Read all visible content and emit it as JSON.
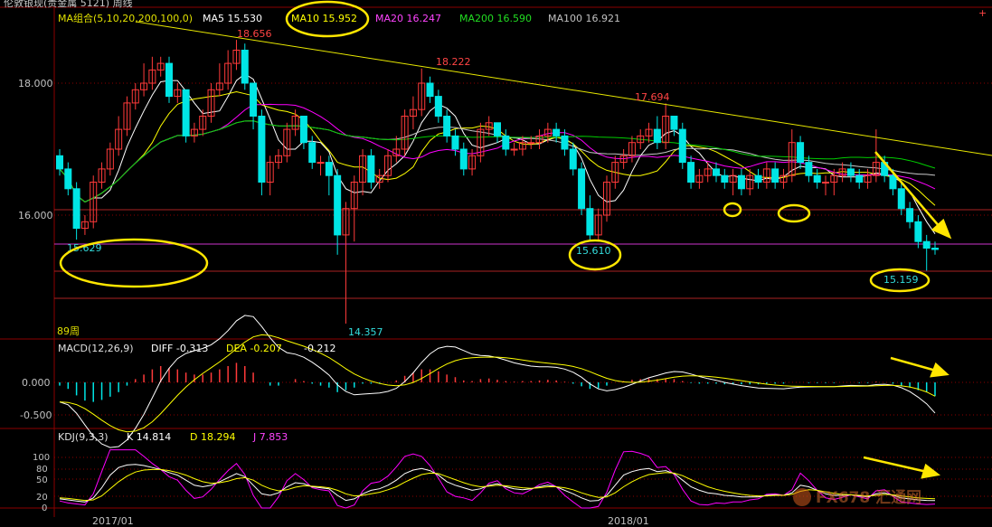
{
  "header": {
    "title": "伦敦银现(贵金属 5121)  周线",
    "ma_label": "MA组合(5,10,20,200,100,0)",
    "ma5": "MA5 15.530",
    "ma10": "MA10 15.952",
    "ma20": "MA20 16.247",
    "ma200": "MA200 16.590",
    "ma100": "MA100 16.921"
  },
  "colors": {
    "ma5": "#ffffff",
    "ma10": "#ffff00",
    "ma20": "#ff00ff",
    "ma200": "#00cc00",
    "ma100": "#c8c8c8",
    "up": "#ff3a3a",
    "down": "#00e5e5",
    "grid": "#8b0000",
    "highlight": "#ffe600"
  },
  "main_panel": {
    "y_ticks": [
      "18.000",
      "16.000"
    ],
    "annotations": {
      "h1": "18.656",
      "h2": "18.222",
      "h3": "17.694",
      "l1": "15.629",
      "l2": "15.610",
      "l3": "15.159",
      "l4": "14.357"
    },
    "period_label": "89周"
  },
  "macd_panel": {
    "label": "MACD(12,26,9)",
    "diff": "DIFF -0.313",
    "dea": "DEA -0.207",
    "macd": "-0.212",
    "y_ticks": [
      "0.000",
      "-0.500"
    ]
  },
  "kdj_panel": {
    "label": "KDJ(9,3,3)",
    "k": "K 14.814",
    "d": "D 18.294",
    "j": "J 7.853",
    "y_ticks": [
      "100",
      "80",
      "50",
      "20",
      "0"
    ]
  },
  "x_axis": {
    "labels": [
      "2017/01",
      "2018/01"
    ]
  },
  "watermark": {
    "text": "FX678 汇通网"
  },
  "chart_data": {
    "type": "candlestick",
    "open": [
      16.9,
      16.7,
      16.4,
      15.8,
      15.9,
      16.5,
      16.7,
      17.0,
      17.3,
      17.7,
      17.9,
      18.0,
      18.2,
      18.3,
      17.8,
      17.9,
      17.2,
      17.3,
      17.5,
      17.9,
      18.0,
      18.3,
      18.5,
      18.0,
      17.5,
      16.5,
      16.8,
      16.9,
      17.3,
      17.5,
      17.1,
      16.8,
      16.8,
      16.6,
      15.7,
      16.1,
      16.5,
      16.9,
      16.5,
      16.6,
      16.9,
      17.0,
      17.5,
      17.6,
      18.0,
      17.8,
      17.5,
      17.2,
      17.0,
      16.7,
      16.9,
      17.3,
      17.4,
      17.2,
      17.0,
      17.0,
      17.1,
      17.1,
      17.2,
      17.3,
      17.2,
      17.0,
      16.7,
      16.1,
      15.7,
      16.0,
      16.5,
      16.8,
      16.9,
      17.1,
      17.2,
      17.3,
      17.1,
      17.5,
      17.3,
      16.8,
      16.5,
      16.6,
      16.7,
      16.6,
      16.5,
      16.6,
      16.4,
      16.6,
      16.5,
      16.7,
      16.5,
      16.6,
      17.1,
      16.8,
      16.6,
      16.5,
      16.5,
      16.6,
      16.7,
      16.6,
      16.5,
      16.6,
      16.8,
      16.6,
      16.4,
      16.1,
      15.9,
      15.6,
      15.5
    ],
    "close": [
      16.7,
      16.4,
      15.8,
      15.9,
      16.5,
      16.7,
      17.0,
      17.3,
      17.7,
      17.9,
      18.0,
      18.2,
      18.3,
      17.8,
      17.9,
      17.2,
      17.3,
      17.5,
      17.9,
      18.0,
      18.3,
      18.5,
      18.0,
      17.5,
      16.5,
      16.8,
      16.9,
      17.3,
      17.5,
      17.1,
      16.8,
      16.8,
      16.6,
      15.7,
      16.1,
      16.5,
      16.9,
      16.5,
      16.6,
      16.9,
      17.0,
      17.5,
      17.6,
      18.0,
      17.8,
      17.5,
      17.2,
      17.0,
      16.7,
      16.9,
      17.3,
      17.4,
      17.2,
      17.0,
      17.0,
      17.1,
      17.1,
      17.2,
      17.3,
      17.2,
      17.0,
      16.7,
      16.1,
      15.7,
      16.0,
      16.5,
      16.8,
      16.9,
      17.1,
      17.2,
      17.3,
      17.1,
      17.5,
      17.3,
      16.8,
      16.5,
      16.6,
      16.7,
      16.6,
      16.5,
      16.6,
      16.4,
      16.6,
      16.5,
      16.7,
      16.5,
      16.6,
      17.1,
      16.8,
      16.6,
      16.5,
      16.5,
      16.6,
      16.7,
      16.6,
      16.5,
      16.6,
      16.8,
      16.6,
      16.4,
      16.1,
      15.9,
      15.6,
      15.5,
      15.48
    ],
    "high": [
      17.0,
      16.8,
      16.5,
      16.0,
      16.6,
      16.8,
      17.1,
      17.5,
      17.8,
      18.0,
      18.3,
      18.4,
      18.4,
      18.4,
      18.0,
      17.9,
      17.4,
      17.6,
      18.0,
      18.3,
      18.5,
      18.656,
      18.6,
      18.0,
      17.6,
      16.9,
      17.0,
      17.4,
      17.6,
      17.5,
      17.2,
      16.9,
      16.9,
      16.7,
      16.2,
      16.6,
      17.0,
      17.0,
      16.7,
      17.0,
      17.2,
      17.6,
      17.8,
      18.222,
      18.1,
      17.9,
      17.6,
      17.3,
      17.1,
      17.0,
      17.4,
      17.5,
      17.4,
      17.3,
      17.1,
      17.2,
      17.2,
      17.3,
      17.4,
      17.4,
      17.3,
      17.1,
      16.8,
      16.3,
      16.1,
      16.6,
      16.9,
      17.0,
      17.2,
      17.3,
      17.4,
      17.5,
      17.694,
      17.5,
      17.4,
      16.9,
      16.7,
      16.8,
      16.8,
      16.7,
      16.7,
      16.7,
      16.7,
      16.7,
      16.8,
      16.8,
      16.7,
      17.3,
      17.2,
      16.9,
      16.7,
      16.6,
      16.7,
      16.8,
      16.8,
      16.7,
      16.7,
      17.3,
      16.9,
      16.7,
      16.5,
      16.2,
      16.0,
      15.7,
      15.6
    ],
    "low": [
      16.6,
      16.3,
      15.629,
      15.7,
      15.8,
      16.4,
      16.6,
      16.9,
      17.2,
      17.6,
      17.8,
      17.9,
      18.1,
      17.7,
      17.7,
      17.1,
      17.1,
      17.2,
      17.4,
      17.8,
      17.9,
      18.2,
      17.9,
      17.3,
      16.3,
      16.3,
      16.7,
      16.8,
      17.2,
      17.0,
      16.7,
      16.6,
      16.3,
      15.4,
      14.357,
      15.6,
      16.3,
      16.4,
      16.4,
      16.5,
      16.8,
      16.9,
      17.3,
      17.5,
      17.7,
      17.4,
      17.1,
      16.9,
      16.6,
      16.6,
      16.8,
      17.2,
      17.1,
      16.9,
      16.9,
      16.9,
      17.0,
      17.0,
      17.1,
      17.1,
      16.9,
      16.6,
      16.0,
      15.61,
      15.6,
      15.9,
      16.4,
      16.7,
      16.8,
      17.0,
      17.1,
      17.0,
      17.0,
      17.2,
      16.7,
      16.4,
      16.4,
      16.5,
      16.5,
      16.4,
      16.3,
      16.3,
      16.3,
      16.4,
      16.4,
      16.4,
      16.4,
      16.5,
      16.7,
      16.5,
      16.4,
      16.3,
      16.3,
      16.5,
      16.5,
      16.4,
      16.4,
      16.5,
      16.5,
      16.3,
      16.0,
      15.8,
      15.5,
      15.159,
      15.4
    ],
    "macd_hist": [
      -0.05,
      -0.1,
      -0.2,
      -0.28,
      -0.3,
      -0.27,
      -0.22,
      -0.15,
      -0.05,
      0.05,
      0.12,
      0.2,
      0.25,
      0.22,
      0.2,
      0.15,
      0.12,
      0.12,
      0.15,
      0.2,
      0.25,
      0.3,
      0.25,
      0.15,
      0.0,
      -0.05,
      -0.05,
      0.0,
      0.05,
      0.02,
      -0.02,
      -0.05,
      -0.08,
      -0.15,
      -0.12,
      -0.08,
      -0.02,
      -0.02,
      -0.02,
      0.0,
      0.03,
      0.1,
      0.15,
      0.2,
      0.2,
      0.17,
      0.12,
      0.08,
      0.03,
      0.02,
      0.05,
      0.06,
      0.04,
      0.02,
      0.01,
      0.02,
      0.02,
      0.03,
      0.04,
      0.03,
      0.01,
      -0.02,
      -0.06,
      -0.1,
      -0.09,
      -0.05,
      0.0,
      0.02,
      0.04,
      0.05,
      0.06,
      0.05,
      0.06,
      0.05,
      0.02,
      -0.01,
      -0.02,
      -0.02,
      -0.02,
      -0.03,
      -0.03,
      -0.03,
      -0.03,
      -0.03,
      -0.02,
      -0.02,
      -0.02,
      0.0,
      0.0,
      -0.01,
      -0.01,
      -0.01,
      -0.01,
      0.0,
      0.0,
      -0.01,
      -0.01,
      0.01,
      0.0,
      -0.02,
      -0.05,
      -0.08,
      -0.12,
      -0.15,
      -0.212
    ],
    "kdj_k": [
      18,
      16,
      14,
      12,
      20,
      40,
      65,
      80,
      85,
      86,
      84,
      80,
      76,
      70,
      65,
      55,
      45,
      42,
      45,
      52,
      60,
      68,
      62,
      45,
      28,
      25,
      30,
      42,
      50,
      48,
      42,
      40,
      38,
      25,
      15,
      18,
      28,
      35,
      38,
      45,
      55,
      68,
      75,
      78,
      74,
      65,
      52,
      45,
      40,
      35,
      38,
      45,
      48,
      42,
      38,
      36,
      38,
      42,
      45,
      42,
      35,
      28,
      20,
      14,
      15,
      25,
      45,
      65,
      72,
      76,
      78,
      72,
      74,
      68,
      55,
      42,
      35,
      30,
      28,
      25,
      24,
      22,
      22,
      22,
      25,
      26,
      25,
      30,
      45,
      42,
      35,
      28,
      25,
      25,
      26,
      24,
      22,
      28,
      30,
      25,
      20,
      18,
      16,
      15,
      14.8
    ],
    "kdj_d": [
      20,
      19,
      17,
      15,
      16,
      24,
      38,
      52,
      63,
      71,
      75,
      76,
      76,
      74,
      70,
      65,
      58,
      52,
      49,
      50,
      53,
      58,
      60,
      55,
      45,
      38,
      34,
      36,
      41,
      44,
      43,
      42,
      40,
      35,
      28,
      24,
      25,
      28,
      31,
      36,
      42,
      51,
      59,
      66,
      69,
      68,
      62,
      56,
      50,
      45,
      42,
      43,
      45,
      44,
      42,
      40,
      39,
      40,
      42,
      42,
      40,
      36,
      30,
      25,
      21,
      22,
      30,
      42,
      52,
      60,
      66,
      68,
      70,
      69,
      64,
      56,
      49,
      42,
      37,
      33,
      30,
      27,
      25,
      24,
      24,
      25,
      25,
      27,
      33,
      36,
      35,
      32,
      29,
      27,
      26,
      25,
      24,
      25,
      27,
      26,
      24,
      22,
      20,
      19,
      18.3
    ],
    "kdj_j": [
      14,
      10,
      8,
      6,
      28,
      72,
      119,
      136,
      129,
      116,
      102,
      88,
      76,
      62,
      55,
      35,
      19,
      22,
      37,
      56,
      74,
      88,
      66,
      25,
      0,
      0,
      22,
      54,
      68,
      56,
      40,
      36,
      34,
      5,
      0,
      6,
      34,
      49,
      52,
      63,
      81,
      102,
      107,
      102,
      84,
      59,
      32,
      23,
      20,
      15,
      30,
      49,
      54,
      38,
      30,
      28,
      36,
      46,
      51,
      42,
      25,
      12,
      0,
      0,
      3,
      31,
      75,
      111,
      112,
      108,
      102,
      80,
      82,
      66,
      37,
      14,
      7,
      6,
      10,
      9,
      12,
      12,
      16,
      18,
      27,
      28,
      25,
      36,
      69,
      54,
      35,
      20,
      17,
      21,
      26,
      22,
      18,
      34,
      36,
      23,
      12,
      10,
      8,
      7,
      7.85
    ]
  }
}
